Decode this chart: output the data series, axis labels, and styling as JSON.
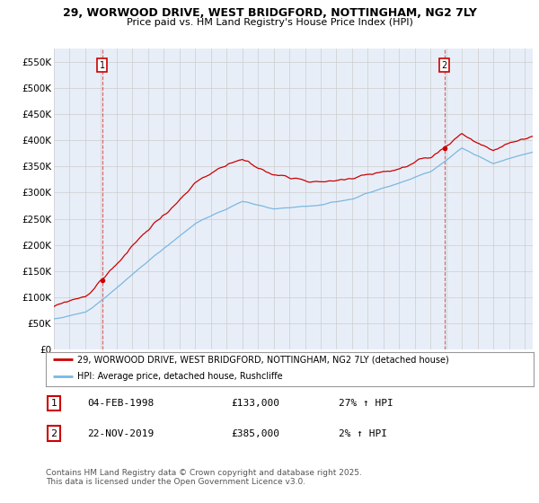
{
  "title1": "29, WORWOOD DRIVE, WEST BRIDGFORD, NOTTINGHAM, NG2 7LY",
  "title2": "Price paid vs. HM Land Registry's House Price Index (HPI)",
  "ylabel_ticks": [
    "£0",
    "£50K",
    "£100K",
    "£150K",
    "£200K",
    "£250K",
    "£300K",
    "£350K",
    "£400K",
    "£450K",
    "£500K",
    "£550K"
  ],
  "ytick_values": [
    0,
    50000,
    100000,
    150000,
    200000,
    250000,
    300000,
    350000,
    400000,
    450000,
    500000,
    550000
  ],
  "ylim": [
    0,
    575000
  ],
  "xlim_start": 1995.0,
  "xlim_end": 2025.5,
  "xticks": [
    1995,
    1996,
    1997,
    1998,
    1999,
    2000,
    2001,
    2002,
    2003,
    2004,
    2005,
    2006,
    2007,
    2008,
    2009,
    2010,
    2011,
    2012,
    2013,
    2014,
    2015,
    2016,
    2017,
    2018,
    2019,
    2020,
    2021,
    2022,
    2023,
    2024,
    2025
  ],
  "hpi_color": "#7ab8e0",
  "price_color": "#cc0000",
  "grid_color": "#cccccc",
  "bg_color": "#ffffff",
  "plot_bg_color": "#e8eef8",
  "sale1_x": 1998.08,
  "sale1_y": 133000,
  "sale2_x": 2019.89,
  "sale2_y": 385000,
  "legend_label_price": "29, WORWOOD DRIVE, WEST BRIDGFORD, NOTTINGHAM, NG2 7LY (detached house)",
  "legend_label_hpi": "HPI: Average price, detached house, Rushcliffe",
  "footnote": "Contains HM Land Registry data © Crown copyright and database right 2025.\nThis data is licensed under the Open Government Licence v3.0."
}
